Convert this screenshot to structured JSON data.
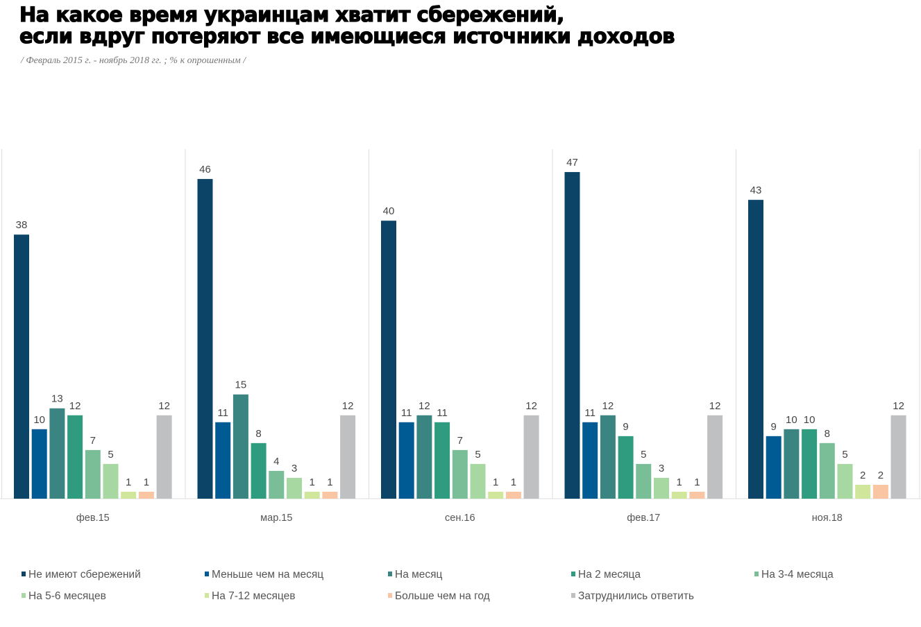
{
  "chart_data": {
    "type": "bar",
    "title": "На какое время украинцам хватит сбережений,\nесли вдруг потеряют все имеющиеся источники доходов",
    "title_lines": [
      "На какое время украинцам хватит сбережений,",
      "если вдруг потеряют все имеющиеся источники доходов"
    ],
    "subtitle": "/ Февраль 2015 г. - ноябрь 2018  гг. ; % к опрошенным /",
    "categories": [
      "фев.15",
      "мар.15",
      "сен.16",
      "фев.17",
      "ноя.18"
    ],
    "ylim": [
      0,
      50
    ],
    "grid": false,
    "legend_position": "bottom",
    "series": [
      {
        "name": "Не имеют сбережений",
        "color": "#0c4467",
        "values": [
          38,
          46,
          40,
          47,
          43
        ]
      },
      {
        "name": "Меньше чем на месяц",
        "color": "#005a94",
        "values": [
          10,
          11,
          11,
          11,
          9
        ]
      },
      {
        "name": "На месяц",
        "color": "#3a8581",
        "values": [
          13,
          15,
          12,
          12,
          10
        ]
      },
      {
        "name": "На 2 месяца",
        "color": "#2f9c7f",
        "values": [
          12,
          8,
          11,
          9,
          10
        ]
      },
      {
        "name": "На 3-4 месяца",
        "color": "#79be97",
        "values": [
          7,
          4,
          7,
          5,
          8
        ]
      },
      {
        "name": "На 5-6 месяцев",
        "color": "#a7d8a2",
        "values": [
          5,
          3,
          5,
          3,
          5
        ]
      },
      {
        "name": "На 7-12 месяцев",
        "color": "#cfe69b",
        "values": [
          1,
          1,
          1,
          1,
          2
        ]
      },
      {
        "name": "Больше чем на год",
        "color": "#f9c5a2",
        "values": [
          1,
          1,
          1,
          1,
          2
        ]
      },
      {
        "name": "Затруднились ответить",
        "color": "#bec0c2",
        "values": [
          12,
          12,
          12,
          12,
          12
        ]
      }
    ]
  }
}
